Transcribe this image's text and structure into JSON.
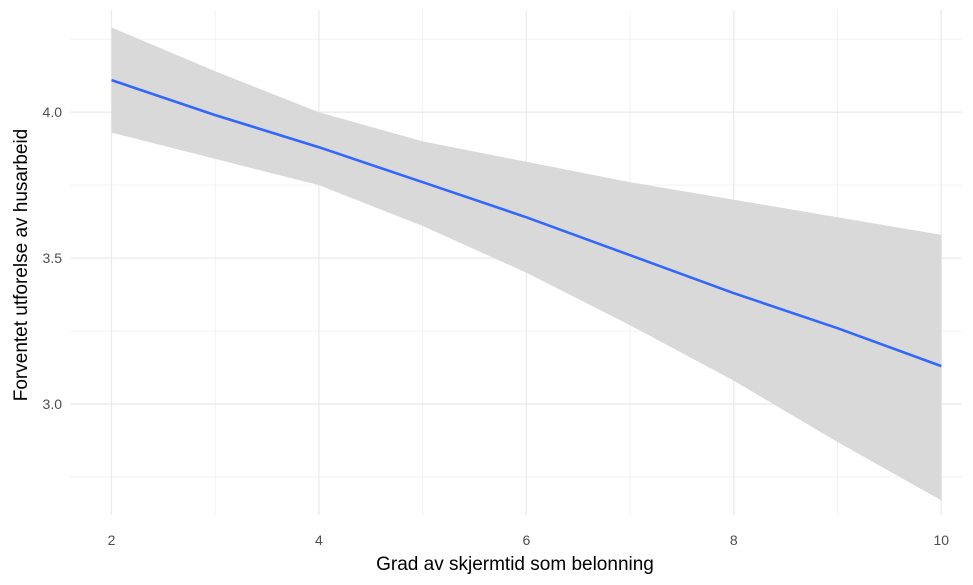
{
  "chart_data": {
    "type": "line",
    "xlabel": "Grad av skjermtid som belonning",
    "ylabel": "Forventet utforelse av husarbeid",
    "xlim": [
      1.6,
      10.2
    ],
    "ylim": [
      2.62,
      4.35
    ],
    "x_ticks": [
      2,
      4,
      6,
      8,
      10
    ],
    "x_tick_labels": [
      "2",
      "4",
      "6",
      "8",
      "10"
    ],
    "y_ticks": [
      3.0,
      3.5,
      4.0
    ],
    "y_tick_labels": [
      "3.0",
      "3.5",
      "4.0"
    ],
    "grid": true,
    "series": [
      {
        "color": "#3366ff",
        "x": [
          2,
          3,
          4,
          5,
          6,
          7,
          8,
          9,
          10
        ],
        "y": [
          4.11,
          3.99,
          3.88,
          3.76,
          3.64,
          3.51,
          3.38,
          3.26,
          3.13
        ],
        "ci_lower": [
          3.93,
          3.84,
          3.75,
          3.61,
          3.45,
          3.27,
          3.08,
          2.87,
          2.67
        ],
        "ci_upper": [
          4.29,
          4.14,
          4.0,
          3.9,
          3.83,
          3.76,
          3.7,
          3.64,
          3.58
        ]
      }
    ],
    "ribbon_color": "#d9d9d9"
  }
}
